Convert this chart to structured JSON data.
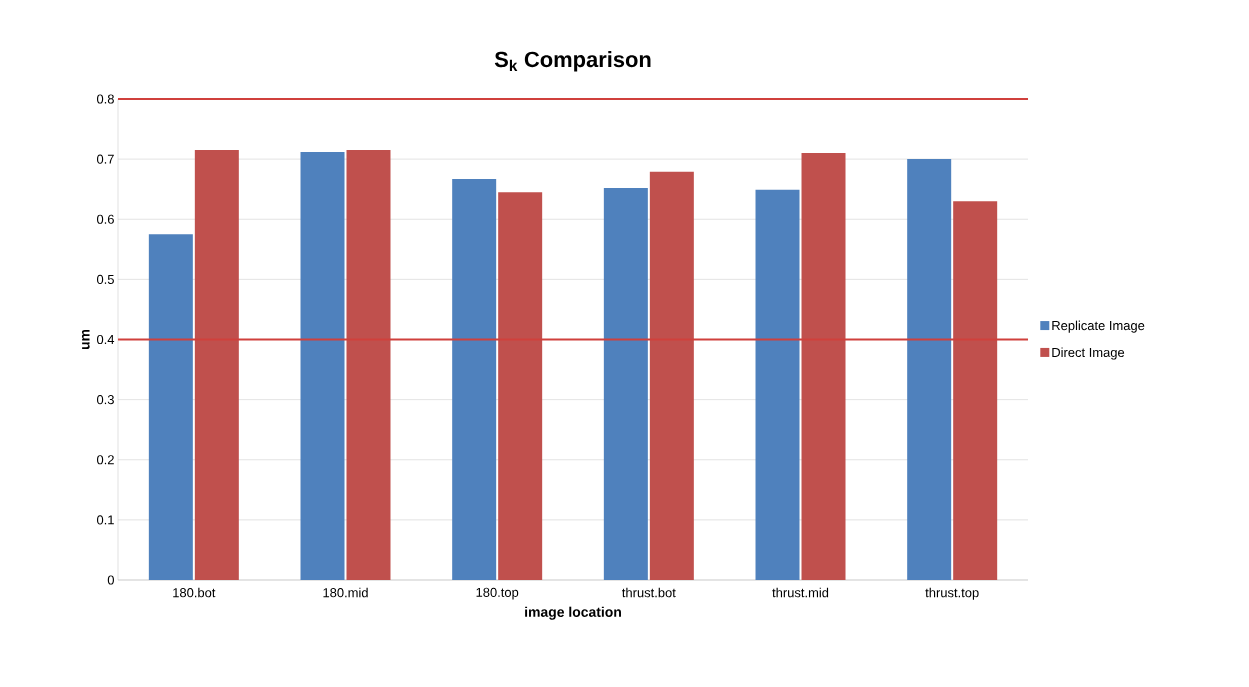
{
  "chart_data": {
    "type": "bar",
    "title": "S$_{k}$ Comparison",
    "xlabel": "image location",
    "ylabel": "um",
    "categories": [
      "180.bot",
      "180.mid",
      "180.top",
      "thrust.bot",
      "thrust.mid",
      "thrust.top"
    ],
    "series": [
      {
        "name": "Replicate Image",
        "color": "#4f81bd",
        "values": [
          0.575,
          0.712,
          0.667,
          0.652,
          0.649,
          0.7
        ]
      },
      {
        "name": "Direct Image",
        "color": "#c0504d",
        "values": [
          0.715,
          0.715,
          0.645,
          0.679,
          0.71,
          0.63
        ]
      }
    ],
    "ylim": [
      0,
      0.8
    ],
    "yticks": [
      0,
      0.1,
      0.2,
      0.3,
      0.4,
      0.5,
      0.6,
      0.7,
      0.8
    ],
    "grid": "y",
    "legend": "right",
    "ref_lines": [
      {
        "axis": "y",
        "value": 0.8,
        "color": "#d0403c"
      },
      {
        "axis": "y",
        "value": 0.4,
        "color": "#d0403c"
      }
    ]
  }
}
